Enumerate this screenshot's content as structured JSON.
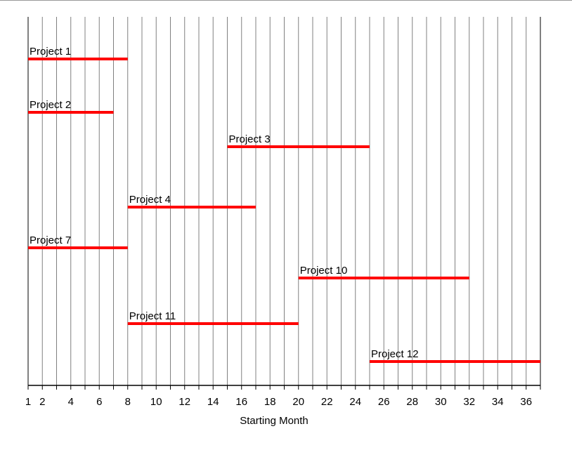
{
  "chart_data": {
    "type": "bar",
    "orientation": "horizontal-range",
    "title": "",
    "xlabel": "Starting Month",
    "ylabel": "",
    "xlim": [
      1,
      37
    ],
    "x_ticks": [
      1,
      2,
      4,
      6,
      8,
      10,
      12,
      14,
      16,
      18,
      20,
      22,
      24,
      26,
      28,
      30,
      32,
      34,
      36
    ],
    "grid": "vertical, every month",
    "bar_color": "#ff0000",
    "grid_color": "#808080",
    "projects": [
      {
        "name": "Project 1",
        "start": 1,
        "end": 8
      },
      {
        "name": "Project 2",
        "start": 1,
        "end": 7
      },
      {
        "name": "Project 3",
        "start": 15,
        "end": 25
      },
      {
        "name": "Project 4",
        "start": 8,
        "end": 17
      },
      {
        "name": "Project 7",
        "start": 1,
        "end": 8
      },
      {
        "name": "Project 10",
        "start": 20,
        "end": 32
      },
      {
        "name": "Project 11",
        "start": 8,
        "end": 20
      },
      {
        "name": "Project 12",
        "start": 25,
        "end": 37
      }
    ]
  }
}
